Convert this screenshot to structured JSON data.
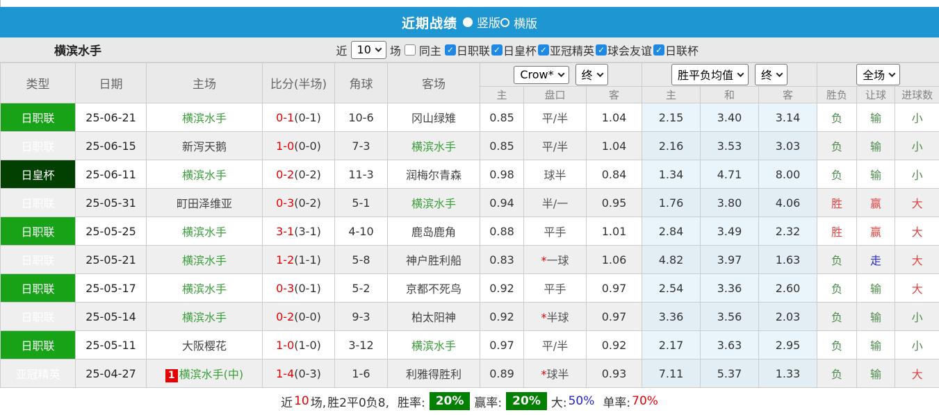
{
  "colors": {
    "bar_blue": "#1e96d2",
    "league_green": "#18a218",
    "league_dark_green": "#024002",
    "league_blue": "#1c1cd2",
    "team_green": "#3aa03a",
    "score_red": "#e60000",
    "win_red": "#e04545",
    "lose_green": "#4d8b4d",
    "push_blue": "#2a2ad2",
    "pct_box_green": "#028002",
    "check_blue": "#1e88e5"
  },
  "titlebar": {
    "title": "近期战绩",
    "radio_options": [
      {
        "label": "竖版",
        "selected": true
      },
      {
        "label": "横版",
        "selected": false
      }
    ]
  },
  "filterbar": {
    "team": "横滨水手",
    "near_label": "近",
    "matches_value": "10",
    "matches_label": "场",
    "same_home": {
      "label": "同主",
      "checked": false
    },
    "competitions": [
      {
        "label": "日职联",
        "checked": true
      },
      {
        "label": "日皇杯",
        "checked": true
      },
      {
        "label": "亚冠精英",
        "checked": true
      },
      {
        "label": "球会友谊",
        "checked": true
      },
      {
        "label": "日联杯",
        "checked": true
      }
    ]
  },
  "table": {
    "static_headers": [
      "类型",
      "日期",
      "主场",
      "比分(半场)",
      "角球",
      "客场"
    ],
    "odds_group": {
      "select1": "Crow*",
      "select2": "终",
      "subs": [
        "主",
        "盘口",
        "客"
      ]
    },
    "avg_group": {
      "select1": "胜平负均值",
      "select2": "终",
      "subs": [
        "主",
        "和",
        "客"
      ]
    },
    "result_group": {
      "select": "全场",
      "subs": [
        "胜负",
        "让球",
        "进球数"
      ]
    },
    "rows": [
      {
        "type": "日职联",
        "type_color": "green",
        "date": "25-06-21",
        "home": "横滨水手",
        "home_hl": true,
        "home_badge": "",
        "score": "0-1",
        "half": "(0-1)",
        "corners": "10-6",
        "away": "冈山绿雉",
        "away_hl": false,
        "odds_home": "0.85",
        "handicap": "平/半",
        "handicap_star": false,
        "odds_away": "1.04",
        "avg_home": "2.15",
        "avg_draw": "3.40",
        "avg_away": "3.14",
        "result": "负",
        "result_c": "green",
        "let": "输",
        "let_c": "green",
        "goals": "小",
        "goals_c": "green"
      },
      {
        "type": "日职联",
        "type_color": "green",
        "date": "25-06-15",
        "home": "新泻天鹅",
        "home_hl": false,
        "home_badge": "",
        "score": "1-0",
        "half": "(0-0)",
        "corners": "7-3",
        "away": "横滨水手",
        "away_hl": true,
        "odds_home": "0.85",
        "handicap": "平/半",
        "handicap_star": false,
        "odds_away": "1.04",
        "avg_home": "2.16",
        "avg_draw": "3.53",
        "avg_away": "3.03",
        "result": "负",
        "result_c": "green",
        "let": "输",
        "let_c": "green",
        "goals": "小",
        "goals_c": "green"
      },
      {
        "type": "日皇杯",
        "type_color": "darkgreen",
        "date": "25-06-11",
        "home": "横滨水手",
        "home_hl": true,
        "home_badge": "",
        "score": "0-2",
        "half": "(0-2)",
        "corners": "11-3",
        "away": "润梅尔青森",
        "away_hl": false,
        "odds_home": "0.98",
        "handicap": "球半",
        "handicap_star": false,
        "odds_away": "0.84",
        "avg_home": "1.34",
        "avg_draw": "4.71",
        "avg_away": "8.00",
        "result": "负",
        "result_c": "green",
        "let": "输",
        "let_c": "green",
        "goals": "小",
        "goals_c": "green"
      },
      {
        "type": "日职联",
        "type_color": "green",
        "date": "25-05-31",
        "home": "町田泽维亚",
        "home_hl": false,
        "home_badge": "",
        "score": "0-3",
        "half": "(0-2)",
        "corners": "5-1",
        "away": "横滨水手",
        "away_hl": true,
        "odds_home": "0.94",
        "handicap": "半/一",
        "handicap_star": false,
        "odds_away": "0.95",
        "avg_home": "1.76",
        "avg_draw": "3.80",
        "avg_away": "4.06",
        "result": "胜",
        "result_c": "red",
        "let": "赢",
        "let_c": "red",
        "goals": "大",
        "goals_c": "red"
      },
      {
        "type": "日职联",
        "type_color": "green",
        "date": "25-05-25",
        "home": "横滨水手",
        "home_hl": true,
        "home_badge": "",
        "score": "3-1",
        "half": "(3-1)",
        "corners": "4-10",
        "away": "鹿岛鹿角",
        "away_hl": false,
        "odds_home": "0.88",
        "handicap": "平手",
        "handicap_star": false,
        "odds_away": "1.01",
        "avg_home": "2.84",
        "avg_draw": "3.49",
        "avg_away": "2.32",
        "result": "胜",
        "result_c": "red",
        "let": "赢",
        "let_c": "red",
        "goals": "大",
        "goals_c": "red"
      },
      {
        "type": "日职联",
        "type_color": "green",
        "date": "25-05-21",
        "home": "横滨水手",
        "home_hl": true,
        "home_badge": "",
        "score": "1-2",
        "half": "(1-1)",
        "corners": "5-8",
        "away": "神户胜利船",
        "away_hl": false,
        "odds_home": "0.83",
        "handicap": "一球",
        "handicap_star": true,
        "odds_away": "1.06",
        "avg_home": "4.82",
        "avg_draw": "3.97",
        "avg_away": "1.63",
        "result": "负",
        "result_c": "green",
        "let": "走",
        "let_c": "blue",
        "goals": "大",
        "goals_c": "red"
      },
      {
        "type": "日职联",
        "type_color": "green",
        "date": "25-05-17",
        "home": "横滨水手",
        "home_hl": true,
        "home_badge": "",
        "score": "0-3",
        "half": "(0-1)",
        "corners": "5-2",
        "away": "京都不死鸟",
        "away_hl": false,
        "odds_home": "0.92",
        "handicap": "平手",
        "handicap_star": false,
        "odds_away": "0.97",
        "avg_home": "2.54",
        "avg_draw": "3.36",
        "avg_away": "2.60",
        "result": "负",
        "result_c": "green",
        "let": "输",
        "let_c": "green",
        "goals": "大",
        "goals_c": "red"
      },
      {
        "type": "日职联",
        "type_color": "green",
        "date": "25-05-14",
        "home": "横滨水手",
        "home_hl": true,
        "home_badge": "",
        "score": "0-2",
        "half": "(0-0)",
        "corners": "9-3",
        "away": "柏太阳神",
        "away_hl": false,
        "odds_home": "0.92",
        "handicap": "半球",
        "handicap_star": true,
        "odds_away": "0.97",
        "avg_home": "3.36",
        "avg_draw": "3.56",
        "avg_away": "2.03",
        "result": "负",
        "result_c": "green",
        "let": "输",
        "let_c": "green",
        "goals": "小",
        "goals_c": "green"
      },
      {
        "type": "日职联",
        "type_color": "green",
        "date": "25-05-11",
        "home": "大阪樱花",
        "home_hl": false,
        "home_badge": "",
        "score": "1-0",
        "half": "(1-0)",
        "corners": "3-12",
        "away": "横滨水手",
        "away_hl": true,
        "odds_home": "0.97",
        "handicap": "平/半",
        "handicap_star": false,
        "odds_away": "0.92",
        "avg_home": "2.17",
        "avg_draw": "3.63",
        "avg_away": "2.95",
        "result": "负",
        "result_c": "green",
        "let": "输",
        "let_c": "green",
        "goals": "小",
        "goals_c": "green"
      },
      {
        "type": "亚冠精英",
        "type_color": "blue",
        "date": "25-04-27",
        "home": "横滨水手(中)",
        "home_hl": true,
        "home_badge": "1",
        "score": "1-4",
        "half": "(0-3)",
        "corners": "1-6",
        "away": "利雅得胜利",
        "away_hl": false,
        "odds_home": "0.89",
        "handicap": "球半",
        "handicap_star": true,
        "odds_away": "0.93",
        "avg_home": "7.11",
        "avg_draw": "5.37",
        "avg_away": "1.33",
        "result": "负",
        "result_c": "green",
        "let": "输",
        "let_c": "green",
        "goals": "大",
        "goals_c": "red"
      }
    ]
  },
  "summary": {
    "near_label": "近",
    "near_count": "10",
    "matches_suffix": "场,",
    "record": "胜2平0负8,",
    "win_rate_label": "胜率:",
    "win_rate": "20%",
    "handicap_rate_label": "赢率:",
    "handicap_rate": "20%",
    "big_label": "大:",
    "big_rate": "50%",
    "single_label": "单率:",
    "single_rate": "70%"
  }
}
